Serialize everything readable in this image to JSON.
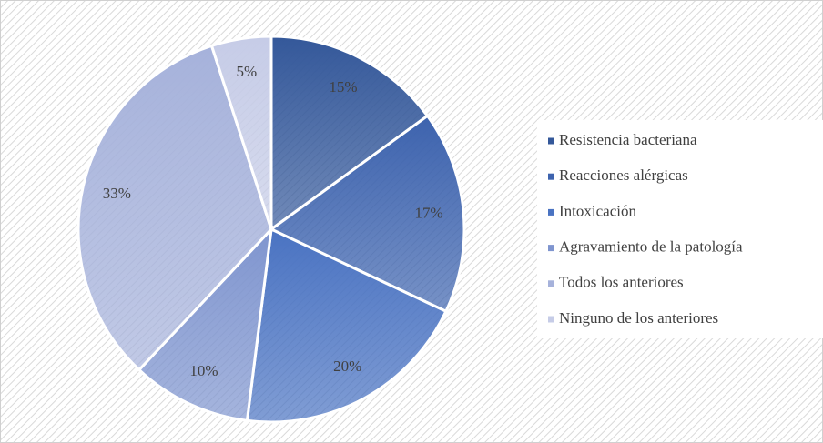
{
  "chart_data": {
    "type": "pie",
    "categories": [
      "Resistencia bacteriana",
      "Reacciones alérgicas",
      "Intoxicación",
      "Agravamiento de la patología",
      "Todos los anteriores",
      "Ninguno de los anteriores"
    ],
    "values": [
      15,
      17,
      20,
      10,
      33,
      5
    ],
    "value_labels": [
      "15%",
      "17%",
      "20%",
      "10%",
      "33%",
      "5%"
    ],
    "colors": [
      "#34589a",
      "#3d63ae",
      "#4a73c2",
      "#7f95cf",
      "#a6b2db",
      "#c6cce7"
    ],
    "legend": "right"
  }
}
